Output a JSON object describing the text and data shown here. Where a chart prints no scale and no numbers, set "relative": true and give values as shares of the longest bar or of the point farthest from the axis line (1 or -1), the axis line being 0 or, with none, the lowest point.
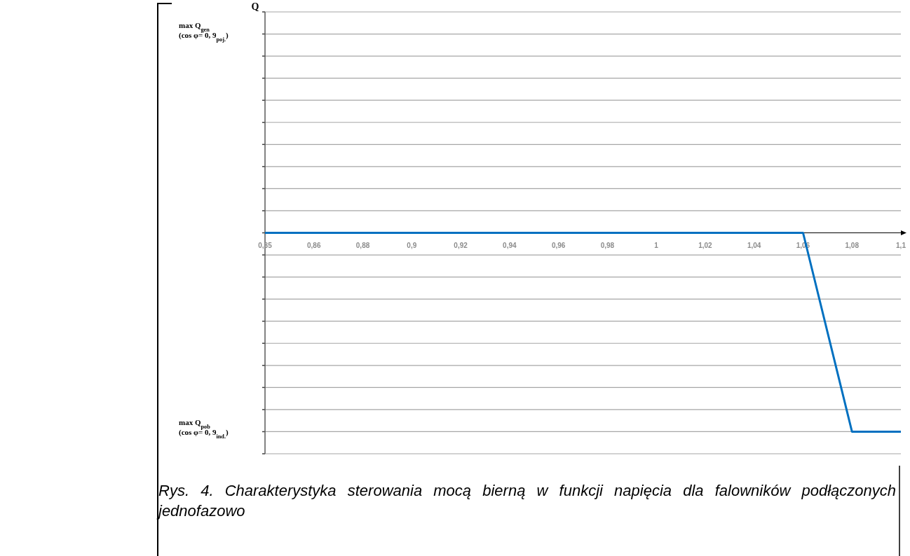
{
  "chart_data": {
    "type": "line",
    "relative": true,
    "annotations": [
      "Q",
      "max Q$_{gen}$\n(cos φ= 0, 9$_{poj.}$)",
      "max Q$_{pob}$\n(cos φ= 0, 9$_{ind.}$)",
      "Rys. 4. Charakterystyka sterowania mocą bierną w funkcji napięcia dla falowników podłączonych jednofazowo"
    ],
    "categories": [
      "0,85",
      "0,86",
      "0,88",
      "0,9",
      "0,92",
      "0,94",
      "0,96",
      "0,98",
      "1",
      "1,02",
      "1,04",
      "1,06",
      "1,08",
      "1,1"
    ],
    "series": [
      {
        "color": "#0070c0",
        "values": [
          0,
          0,
          0,
          0,
          0,
          0,
          0,
          0,
          0,
          0,
          0,
          0,
          -1,
          -1
        ]
      }
    ],
    "grid": "y",
    "marker": "none",
    "line_style": "solid"
  }
}
